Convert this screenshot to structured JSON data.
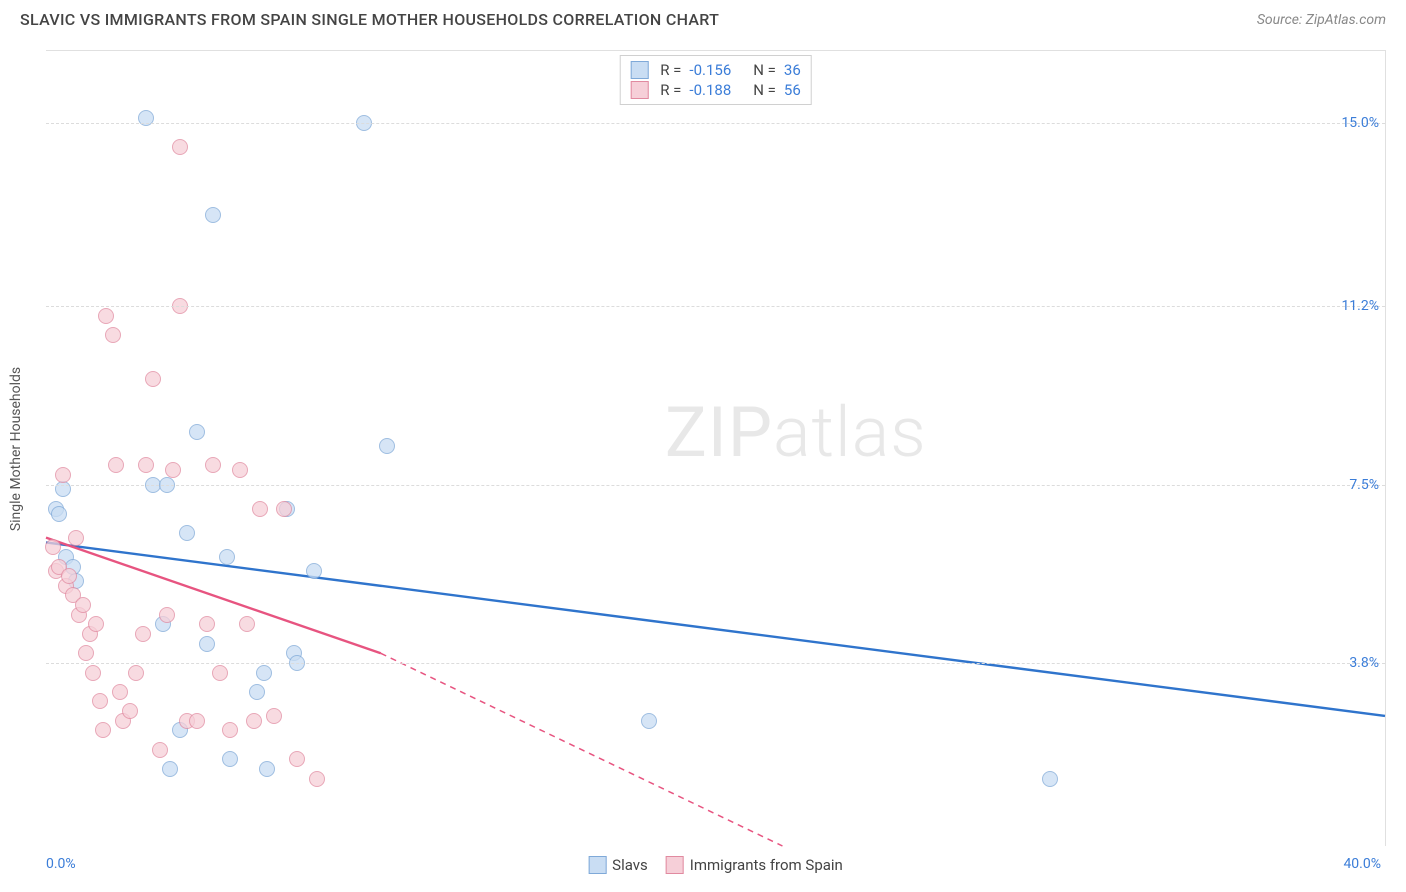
{
  "title": "SLAVIC VS IMMIGRANTS FROM SPAIN SINGLE MOTHER HOUSEHOLDS CORRELATION CHART",
  "source": "Source: ZipAtlas.com",
  "watermark": {
    "zip": "ZIP",
    "atlas": "atlas"
  },
  "chart": {
    "type": "scatter",
    "xlim": [
      0,
      40
    ],
    "ylim": [
      0,
      16.5
    ],
    "y_gridlines": [
      3.8,
      7.5,
      11.2,
      15.0
    ],
    "y_tick_labels": [
      "3.8%",
      "7.5%",
      "11.2%",
      "15.0%"
    ],
    "x_ticks": [
      0,
      40
    ],
    "x_tick_labels": [
      "0.0%",
      "40.0%"
    ],
    "ylabel": "Single Mother Households",
    "grid_color": "#dcdcdc",
    "background_color": "#ffffff",
    "axis_label_color": "#3b7dd8",
    "series": [
      {
        "name": "Slavs",
        "fill": "#c9ddf3",
        "stroke": "#7fa9d8",
        "line_color": "#2f74cc",
        "r_value": "-0.156",
        "n_value": "36",
        "points": [
          [
            0.3,
            7.0
          ],
          [
            0.4,
            6.9
          ],
          [
            0.5,
            7.4
          ],
          [
            0.6,
            6.0
          ],
          [
            0.8,
            5.8
          ],
          [
            0.9,
            5.5
          ],
          [
            3.0,
            15.1
          ],
          [
            3.2,
            7.5
          ],
          [
            3.5,
            4.6
          ],
          [
            3.6,
            7.5
          ],
          [
            3.7,
            1.6
          ],
          [
            4.0,
            2.4
          ],
          [
            4.2,
            6.5
          ],
          [
            4.5,
            8.6
          ],
          [
            4.8,
            4.2
          ],
          [
            5.0,
            13.1
          ],
          [
            5.4,
            6.0
          ],
          [
            5.5,
            1.8
          ],
          [
            6.3,
            3.2
          ],
          [
            6.5,
            3.6
          ],
          [
            6.6,
            1.6
          ],
          [
            7.2,
            7.0
          ],
          [
            7.4,
            4.0
          ],
          [
            7.5,
            3.8
          ],
          [
            8.0,
            5.7
          ],
          [
            9.5,
            15.0
          ],
          [
            10.2,
            8.3
          ],
          [
            18.0,
            2.6
          ],
          [
            30.0,
            1.4
          ]
        ],
        "trend": {
          "x1": 0,
          "y1": 6.3,
          "x2": 40,
          "y2": 2.7
        }
      },
      {
        "name": "Immigrants from Spain",
        "fill": "#f6cfd8",
        "stroke": "#e18aa0",
        "line_color": "#e75480",
        "r_value": "-0.188",
        "n_value": "56",
        "points": [
          [
            0.2,
            6.2
          ],
          [
            0.3,
            5.7
          ],
          [
            0.4,
            5.8
          ],
          [
            0.5,
            7.7
          ],
          [
            0.6,
            5.4
          ],
          [
            0.7,
            5.6
          ],
          [
            0.8,
            5.2
          ],
          [
            0.9,
            6.4
          ],
          [
            1.0,
            4.8
          ],
          [
            1.1,
            5.0
          ],
          [
            1.2,
            4.0
          ],
          [
            1.3,
            4.4
          ],
          [
            1.4,
            3.6
          ],
          [
            1.5,
            4.6
          ],
          [
            1.6,
            3.0
          ],
          [
            1.7,
            2.4
          ],
          [
            1.8,
            11.0
          ],
          [
            2.0,
            10.6
          ],
          [
            2.1,
            7.9
          ],
          [
            2.2,
            3.2
          ],
          [
            2.3,
            2.6
          ],
          [
            2.5,
            2.8
          ],
          [
            2.7,
            3.6
          ],
          [
            2.9,
            4.4
          ],
          [
            3.0,
            7.9
          ],
          [
            3.2,
            9.7
          ],
          [
            3.4,
            2.0
          ],
          [
            3.6,
            4.8
          ],
          [
            3.8,
            7.8
          ],
          [
            4.0,
            11.2
          ],
          [
            4.0,
            14.5
          ],
          [
            4.2,
            2.6
          ],
          [
            4.5,
            2.6
          ],
          [
            4.8,
            4.6
          ],
          [
            5.0,
            7.9
          ],
          [
            5.2,
            3.6
          ],
          [
            5.5,
            2.4
          ],
          [
            5.8,
            7.8
          ],
          [
            6.0,
            4.6
          ],
          [
            6.2,
            2.6
          ],
          [
            6.4,
            7.0
          ],
          [
            6.8,
            2.7
          ],
          [
            7.1,
            7.0
          ],
          [
            7.5,
            1.8
          ],
          [
            8.1,
            1.4
          ]
        ],
        "trend": {
          "x1": 0,
          "y1": 6.4,
          "x2": 10,
          "y2": 4.0
        },
        "trend_extend": {
          "x1": 10,
          "y1": 4.0,
          "x2": 22,
          "y2": 0
        }
      }
    ],
    "legend_top": {
      "r_label": "R =",
      "n_label": "N ="
    },
    "legend_bottom": [
      {
        "label": "Slavs",
        "fill": "#c9ddf3",
        "stroke": "#7fa9d8"
      },
      {
        "label": "Immigrants from Spain",
        "fill": "#f6cfd8",
        "stroke": "#e18aa0"
      }
    ]
  }
}
